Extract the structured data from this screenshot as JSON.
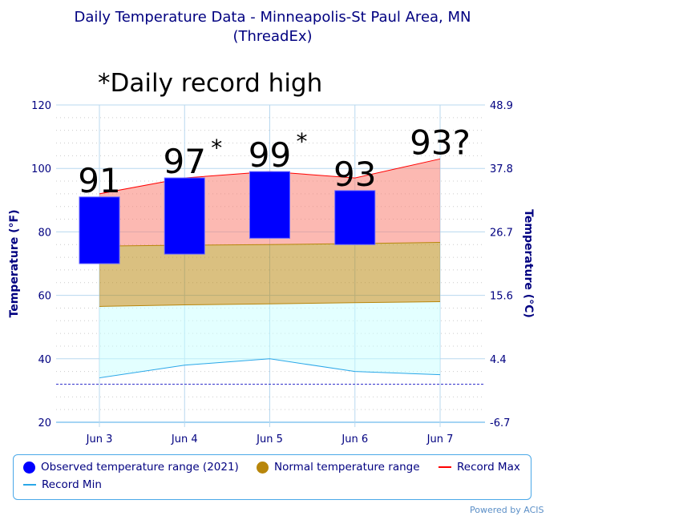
{
  "chart_data": {
    "type": "bar",
    "title": "Daily Temperature Data - Minneapolis-St Paul Area, MN",
    "subtitle": "(ThreadEx)",
    "ylabel": "Temperature (°F)",
    "ylabel_right": "Temperature (°C)",
    "ylim": [
      20,
      120
    ],
    "yticks": [
      20,
      40,
      60,
      80,
      100,
      120
    ],
    "yticks_right": [
      "-6.7",
      "4.4",
      "15.6",
      "26.7",
      "37.8",
      "48.9"
    ],
    "categories": [
      "Jun 3",
      "Jun 4",
      "Jun 5",
      "Jun 6",
      "Jun 7"
    ],
    "grid": true,
    "legend_placement": "bottom",
    "series": [
      {
        "name": "Observed temperature range (2021)",
        "type": "floating-bar",
        "color": "#0000ff",
        "low": [
          70,
          73,
          78,
          76,
          null
        ],
        "high": [
          91,
          97,
          99,
          93,
          null
        ]
      },
      {
        "name": "Normal temperature range",
        "type": "area-range",
        "color": "#b8860b",
        "low": [
          56.5,
          57,
          57.3,
          57.7,
          58
        ],
        "high": [
          75.5,
          75.8,
          76,
          76.3,
          76.7
        ]
      },
      {
        "name": "Record Max",
        "type": "line",
        "color": "#ff0000",
        "values": [
          92,
          97,
          99,
          97,
          103
        ]
      },
      {
        "name": "Record Min",
        "type": "line",
        "color": "#2aa7e8",
        "values": [
          34,
          38,
          40,
          36,
          35
        ]
      }
    ],
    "freezing_line": 32,
    "annotations": [
      "91",
      "97",
      "99",
      "93",
      "93?"
    ],
    "annotation_stars": [
      "",
      "*",
      "*",
      "",
      ""
    ],
    "note": "*Daily record high"
  },
  "credit": "Powered by ACIS"
}
